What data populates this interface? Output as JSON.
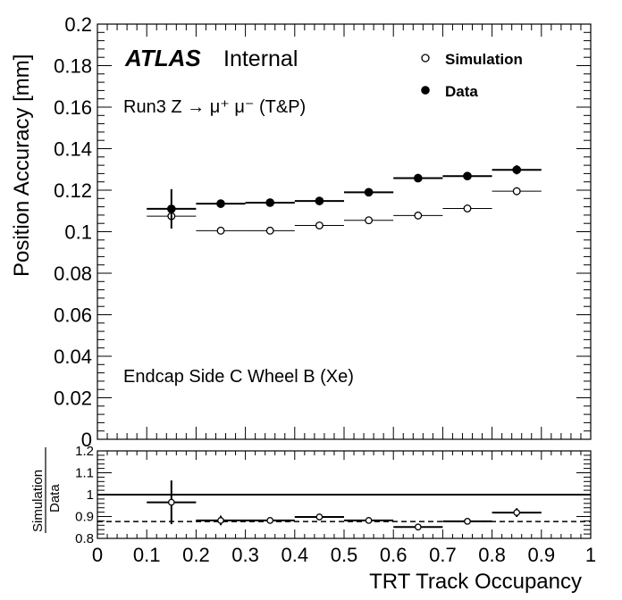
{
  "chart_data": [
    {
      "type": "scatter",
      "panel": "main",
      "xlabel": "",
      "ylabel": "Position Accuracy [mm]",
      "xlim": [
        0,
        1
      ],
      "ylim": [
        0,
        0.2
      ],
      "x_bin_edges": [
        0.1,
        0.2,
        0.3,
        0.4,
        0.5,
        0.6,
        0.7,
        0.8,
        0.9
      ],
      "y_ticks": [
        "0",
        "0.02",
        "0.04",
        "0.06",
        "0.08",
        "0.1",
        "0.12",
        "0.14",
        "0.16",
        "0.18",
        "0.2"
      ],
      "series": [
        {
          "name": "Simulation",
          "marker": "open-circle",
          "values": [
            0.1075,
            0.1005,
            0.1005,
            0.103,
            0.1055,
            0.1078,
            0.1112,
            0.1195
          ],
          "errors": [
            0.002,
            0.001,
            0.001,
            0.001,
            0.001,
            0.001,
            0.001,
            0.002
          ]
        },
        {
          "name": "Data",
          "marker": "filled-circle",
          "values": [
            0.111,
            0.1135,
            0.114,
            0.1148,
            0.119,
            0.1258,
            0.1268,
            0.1298
          ],
          "errors": [
            0.0095,
            0.002,
            0.0013,
            0.0013,
            0.0013,
            0.0013,
            0.0013,
            0.0022
          ]
        }
      ],
      "annotations": {
        "atlas": "ATLAS",
        "internal": "Internal",
        "process": "Run3 Z → μ⁺ μ⁻ (T&P)",
        "region": "Endcap Side C Wheel B (Xe)"
      },
      "legend": {
        "position": "top-right",
        "entries": [
          "Simulation",
          "Data"
        ]
      },
      "grid": false
    },
    {
      "type": "scatter",
      "panel": "ratio",
      "xlabel": "TRT Track Occupancy",
      "ylabel": "Simulation / Data",
      "ylabel_num": "Simulation",
      "ylabel_den": "Data",
      "xlim": [
        0,
        1
      ],
      "ylim": [
        0.8,
        1.2
      ],
      "x_ticks": [
        "0",
        "0.1",
        "0.2",
        "0.3",
        "0.4",
        "0.5",
        "0.6",
        "0.7",
        "0.8",
        "0.9",
        "1"
      ],
      "y_ticks": [
        "0.8",
        "0.9",
        "1",
        "1.1",
        "1.2"
      ],
      "x_bin_edges": [
        0.1,
        0.2,
        0.3,
        0.4,
        0.5,
        0.6,
        0.7,
        0.8,
        0.9
      ],
      "values": [
        0.965,
        0.882,
        0.882,
        0.898,
        0.882,
        0.852,
        0.878,
        0.918
      ],
      "errors": [
        0.1,
        0.022,
        0.008,
        0.008,
        0.008,
        0.008,
        0.008,
        0.02
      ],
      "reference_line": 1.0,
      "mean_line": 0.877,
      "grid": false
    }
  ]
}
